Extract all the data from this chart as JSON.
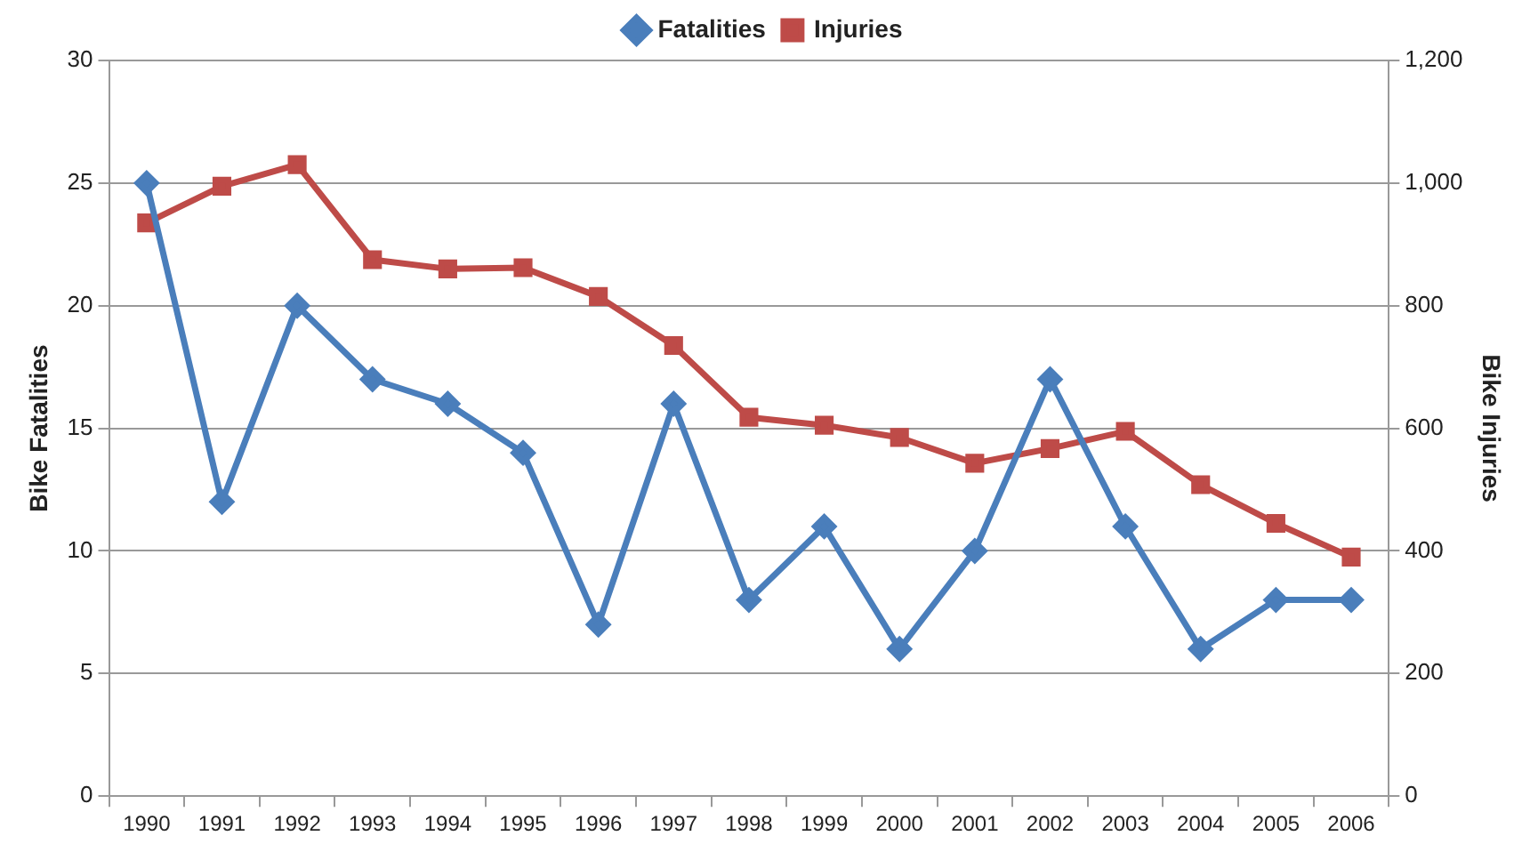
{
  "chart_data": {
    "type": "line",
    "categories": [
      "1990",
      "1991",
      "1992",
      "1993",
      "1994",
      "1995",
      "1996",
      "1997",
      "1998",
      "1999",
      "2000",
      "2001",
      "2002",
      "2003",
      "2004",
      "2005",
      "2006"
    ],
    "series": [
      {
        "name": "Fatalities",
        "color": "#4a7ebb",
        "marker": "diamond",
        "values": [
          25,
          12,
          20,
          17,
          16,
          14,
          7,
          16,
          8,
          11,
          6,
          10,
          17,
          11,
          6,
          8,
          8
        ]
      },
      {
        "name": "Injuries",
        "color": "#be4b48",
        "marker": "square",
        "axis": "y2",
        "values": [
          935,
          995,
          1030,
          875,
          860,
          862,
          815,
          735,
          618,
          605,
          585,
          543,
          567,
          595,
          508,
          445,
          390
        ]
      }
    ],
    "ylabel": "Bike Fatalities",
    "y2label": "Bike Injuries",
    "ylim": [
      0,
      30
    ],
    "yticks": [
      0,
      5,
      10,
      15,
      20,
      25,
      30
    ],
    "y2lim": [
      0,
      1200
    ],
    "y2ticks": [
      0,
      200,
      400,
      600,
      800,
      {
        "value": 1000,
        "label": "1,000"
      },
      {
        "value": 1200,
        "label": "1,200"
      }
    ],
    "grid": "y",
    "legend": "top",
    "line_style": "solid"
  }
}
